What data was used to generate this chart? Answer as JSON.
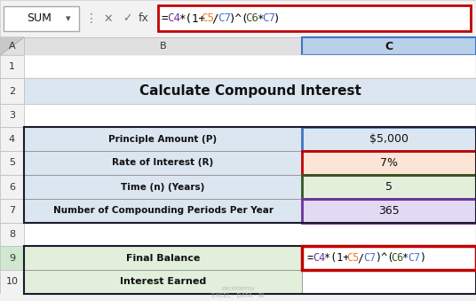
{
  "title_text": "Calculate Compound Interest",
  "title_bg": "#dce6f1",
  "toolbar_bg": "#f2f2f2",
  "col_header_bg": "#d9d9d9",
  "row_header_bg": "#f2f2f2",
  "spreadsheet_bg": "#ffffff",
  "formula_segments": [
    [
      "=",
      "#000000"
    ],
    [
      "C4",
      "#7030a0"
    ],
    [
      "*(1+",
      "#000000"
    ],
    [
      "C5",
      "#ed7d31"
    ],
    [
      "/",
      "#000000"
    ],
    [
      "C7",
      "#4472c4"
    ],
    [
      ")^(",
      "#000000"
    ],
    [
      "C6",
      "#375623"
    ],
    [
      "*",
      "#000000"
    ],
    [
      "C7",
      "#4472c4"
    ],
    [
      ")",
      "#000000"
    ]
  ],
  "rows": [
    {
      "row": 4,
      "label": "Principle Amount (P)",
      "value": "$5,000",
      "label_bg": "#dce6f1",
      "value_bg": "#dce6f1",
      "border_color": "#4472c4"
    },
    {
      "row": 5,
      "label": "Rate of Interest (R)",
      "value": "7%",
      "label_bg": "#dce6f1",
      "value_bg": "#fce4d6",
      "border_color": "#c00000"
    },
    {
      "row": 6,
      "label": "Time (n) (Years)",
      "value": "5",
      "label_bg": "#dce6f1",
      "value_bg": "#e2efda",
      "border_color": "#375623"
    },
    {
      "row": 7,
      "label": "Number of Compounding Periods Per Year",
      "value": "365",
      "label_bg": "#dce6f1",
      "value_bg": "#e2d9f3",
      "border_color": "#7030a0"
    }
  ],
  "result_rows": [
    {
      "row": 9,
      "label": "Final Balance",
      "label_bg": "#e2efda",
      "value_is_formula": true
    },
    {
      "row": 10,
      "label": "Interest Earned",
      "label_bg": "#e2efda",
      "value_is_formula": false
    }
  ],
  "watermark": "exceldemy\nEXCEL · DATA · BI"
}
